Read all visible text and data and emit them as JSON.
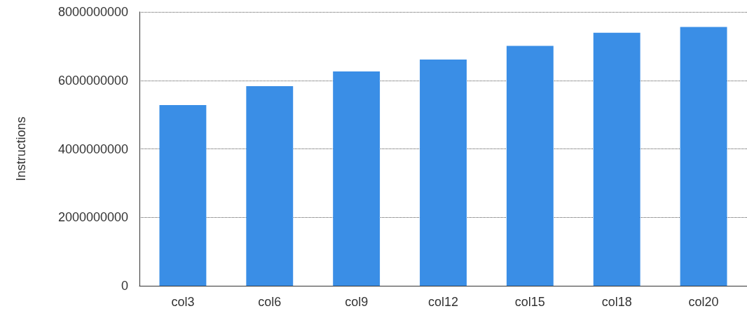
{
  "chart_data": {
    "type": "bar",
    "ylabel": "Instructions",
    "categories": [
      "col3",
      "col6",
      "col9",
      "col12",
      "col15",
      "col18",
      "col20"
    ],
    "values": [
      5280000000,
      5830000000,
      6260000000,
      6610000000,
      7010000000,
      7390000000,
      7560000000
    ],
    "color": "#3a8ee6",
    "ylim": [
      0,
      8000000000
    ],
    "yticks": [
      0,
      2000000000,
      4000000000,
      6000000000,
      8000000000
    ],
    "grid": "y"
  }
}
